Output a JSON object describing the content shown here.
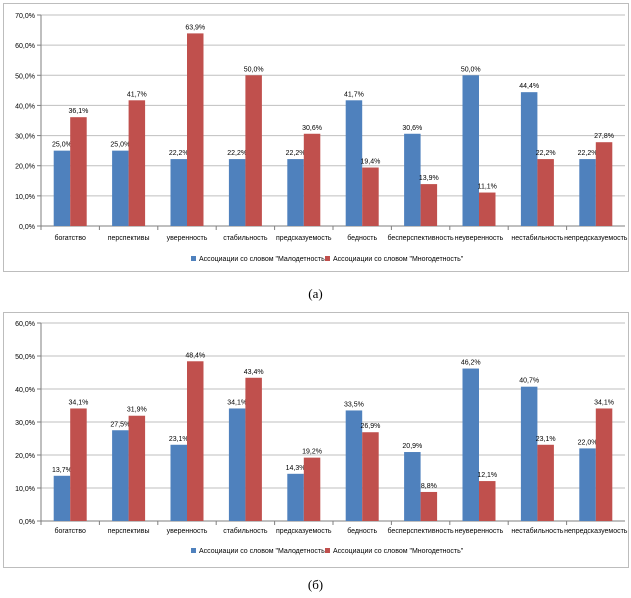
{
  "colors": {
    "series1": "#4f81bd",
    "series2": "#c0504d",
    "grid": "#bfbfbf",
    "axis": "#7f7f7f"
  },
  "chart_data": [
    {
      "type": "bar",
      "caption": "(а)",
      "categories": [
        "богатство",
        "перспективы",
        "уверенность",
        "стабильность",
        "предсказуемость",
        "бедность",
        "бесперспективность",
        "неуверенность",
        "нестабильность",
        "непредсказуемость"
      ],
      "series": [
        {
          "name": "Ассоциации со словом \"Малодетность\"",
          "values": [
            25.0,
            25.0,
            22.2,
            22.2,
            22.2,
            41.7,
            30.6,
            50.0,
            44.4,
            22.2
          ]
        },
        {
          "name": "Ассоциации со словом \"Многодетность\"",
          "values": [
            36.1,
            41.7,
            63.9,
            50.0,
            30.6,
            19.4,
            13.9,
            11.1,
            22.2,
            27.8
          ]
        }
      ],
      "ylim": [
        0,
        70
      ],
      "yticks": [
        "0,0%",
        "10,0%",
        "20,0%",
        "30,0%",
        "40,0%",
        "50,0%",
        "60,0%",
        "70,0%"
      ],
      "grid": true,
      "legend": "bottom"
    },
    {
      "type": "bar",
      "caption": "(б)",
      "categories": [
        "богатство",
        "перспективы",
        "уверенность",
        "стабильность",
        "предсказуемость",
        "бедность",
        "бесперспективность",
        "неуверенность",
        "нестабильность",
        "непредсказуемость"
      ],
      "series": [
        {
          "name": "Ассоциации со словом \"Малодетность\"",
          "values": [
            13.7,
            27.5,
            23.1,
            34.1,
            14.3,
            33.5,
            20.9,
            46.2,
            40.7,
            22.0
          ]
        },
        {
          "name": "Ассоциации со словом \"Многодетность\"",
          "values": [
            34.1,
            31.9,
            48.4,
            43.4,
            19.2,
            26.9,
            8.8,
            12.1,
            23.1,
            34.1
          ]
        }
      ],
      "ylim": [
        0,
        60
      ],
      "yticks": [
        "0,0%",
        "10,0%",
        "20,0%",
        "30,0%",
        "40,0%",
        "50,0%",
        "60,0%"
      ],
      "grid": true,
      "legend": "bottom"
    }
  ]
}
